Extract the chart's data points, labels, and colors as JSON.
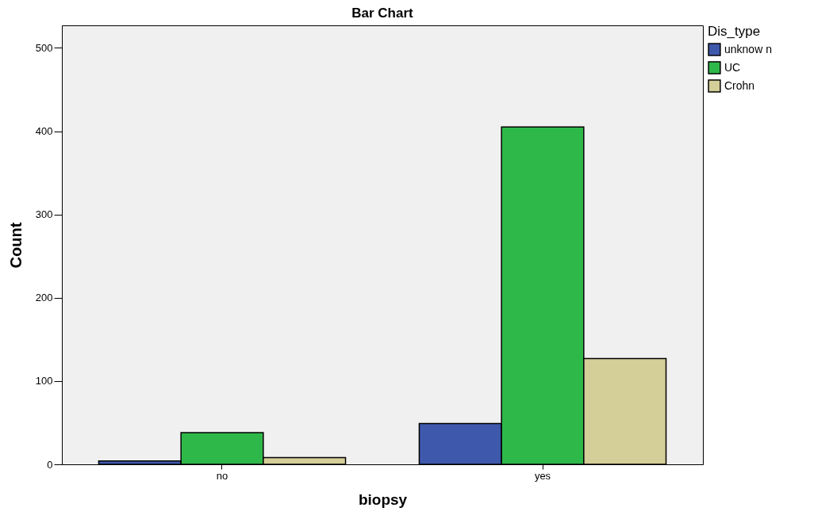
{
  "chart_data": {
    "type": "bar",
    "title": "Bar Chart",
    "xlabel": "biopsy",
    "ylabel": "Count",
    "legend_title": "Dis_type",
    "categories": [
      "no",
      "yes"
    ],
    "series": [
      {
        "name": "unknow n",
        "color": "#3e58ac",
        "values": [
          4,
          49
        ]
      },
      {
        "name": "UC",
        "color": "#2fb84a",
        "values": [
          38,
          405
        ]
      },
      {
        "name": "Crohn",
        "color": "#d4ce98",
        "values": [
          8,
          127
        ]
      }
    ],
    "ylim": [
      0,
      527
    ],
    "yticks": [
      0,
      100,
      200,
      300,
      400,
      500
    ],
    "grid": false,
    "legend": "top right"
  }
}
